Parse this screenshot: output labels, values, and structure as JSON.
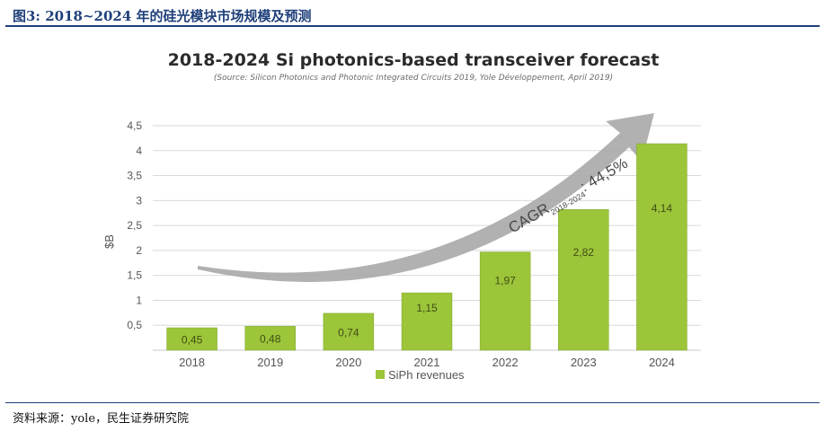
{
  "figure": {
    "title": "图3: 2018~2024 年的硅光模块市场规模及预测",
    "source": "资料来源：yole，民生证券研究院"
  },
  "chart_data": {
    "type": "bar",
    "title": "2018-2024 Si photonics-based transceiver forecast",
    "subtitle": "(Source: Silicon Photonics and Photonic Integrated Circuits 2019, Yole Développement, April 2019)",
    "ylabel": "$B",
    "xlabel": "",
    "ylim": [
      0,
      4.5
    ],
    "yticks": [
      "0,5",
      "1",
      "1,5",
      "2",
      "2,5",
      "3",
      "3,5",
      "4",
      "4,5"
    ],
    "ytick_values": [
      0.5,
      1,
      1.5,
      2,
      2.5,
      3,
      3.5,
      4,
      4.5
    ],
    "categories": [
      "2018",
      "2019",
      "2020",
      "2021",
      "2022",
      "2023",
      "2024"
    ],
    "series": [
      {
        "name": "SiPh revenues",
        "values": [
          0.45,
          0.48,
          0.74,
          1.15,
          1.97,
          2.82,
          4.14
        ],
        "labels": [
          "0,45",
          "0,48",
          "0,74",
          "1,15",
          "1,97",
          "2,82",
          "4,14"
        ]
      }
    ],
    "grid": true,
    "legend": "bottom",
    "annotation": {
      "main": "CAGR",
      "sub": "2018-2024",
      "value": ": 44,5%"
    },
    "colors": {
      "bar": "#9cc53a",
      "bar_edge": "#7fa82c",
      "arrow": "#a8a8a8",
      "grid": "#d9d9d9",
      "text": "#555555"
    }
  }
}
